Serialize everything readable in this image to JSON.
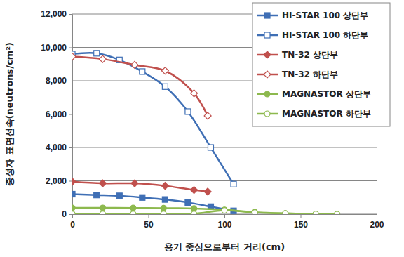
{
  "chart_data": {
    "type": "line",
    "x_label": "용기 중심으로부터 거리(cm)",
    "y_label": "중성자 표면선속(neutrons/cm²)",
    "xlim": [
      0,
      200
    ],
    "xticks": [
      0,
      50,
      100,
      150,
      200
    ],
    "ylim": [
      0,
      12000
    ],
    "yticks": [
      0,
      {
        "value": 2000,
        "label": "2,000"
      },
      {
        "value": 4000,
        "label": "4,000"
      },
      {
        "value": 6000,
        "label": "6,000"
      },
      {
        "value": 8000,
        "label": "8,000"
      },
      {
        "value": 10000,
        "label": "10,000"
      },
      {
        "value": 12000,
        "label": "12,000"
      }
    ],
    "grid": true,
    "legend": "top-right",
    "series": [
      {
        "name": "HI-STAR 100 상단부",
        "color": "#3f6fb5",
        "marker": "square",
        "line_style": "solid",
        "x": [
          0,
          16,
          31,
          46,
          61,
          76,
          91,
          106
        ],
        "values": [
          1200,
          1150,
          1100,
          1000,
          880,
          700,
          450,
          200
        ]
      },
      {
        "name": "HI-STAR 100 하단부",
        "color": "#3f6fb5",
        "marker": "square-open",
        "line_style": "solid",
        "x": [
          0,
          16,
          31,
          46,
          61,
          76,
          91,
          106
        ],
        "values": [
          9600,
          9650,
          9250,
          8550,
          7650,
          6150,
          4000,
          1800
        ]
      },
      {
        "name": "TN-32 상단부",
        "color": "#c0504d",
        "marker": "diamond",
        "line_style": "solid",
        "x": [
          0,
          20,
          41,
          61,
          80,
          89
        ],
        "values": [
          1950,
          1850,
          1850,
          1700,
          1450,
          1350
        ]
      },
      {
        "name": "TN-32 하단부",
        "color": "#c0504d",
        "marker": "diamond-open",
        "line_style": "solid",
        "x": [
          0,
          20,
          41,
          61,
          80,
          89
        ],
        "values": [
          9450,
          9300,
          8950,
          8600,
          7250,
          5900
        ]
      },
      {
        "name": "MAGNASTOR 상단부",
        "color": "#8db94e",
        "marker": "circle",
        "line_style": "solid",
        "x": [
          0,
          20,
          40,
          60,
          80,
          100,
          120,
          140,
          160,
          174
        ],
        "values": [
          380,
          380,
          370,
          360,
          340,
          260,
          120,
          50,
          10,
          0
        ]
      },
      {
        "name": "MAGNASTOR 하단부",
        "color": "#8db94e",
        "marker": "circle-open",
        "line_style": "solid",
        "x": [
          0,
          20,
          40,
          60,
          80,
          100,
          120,
          140,
          160,
          174
        ],
        "values": [
          20,
          20,
          20,
          20,
          20,
          230,
          100,
          40,
          10,
          0
        ]
      }
    ]
  }
}
